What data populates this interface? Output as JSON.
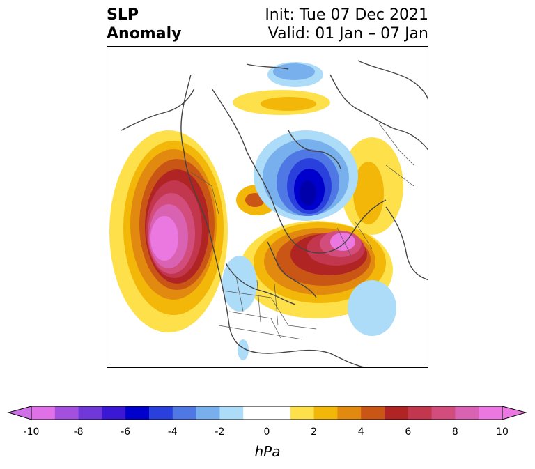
{
  "header": {
    "title_line1": "SLP",
    "title_line2": "Anomaly",
    "init_text": "Init: Tue 07 Dec 2021",
    "valid_text": "Valid: 01 Jan – 07 Jan"
  },
  "colorbar": {
    "unit_label": "hPa",
    "ticks": [
      "-10",
      "-8",
      "-6",
      "-4",
      "-2",
      "0",
      "2",
      "4",
      "6",
      "8",
      "10"
    ],
    "colors": [
      "#e070e8",
      "#a450de",
      "#7038d8",
      "#3a18d4",
      "#0000cc",
      "#2a40dc",
      "#5078e4",
      "#78b0ee",
      "#acdcf8",
      "#ffffff",
      "#ffffff",
      "#fde04a",
      "#f2b708",
      "#e28a10",
      "#ca5616",
      "#b02424",
      "#c2364e",
      "#d24c7c",
      "#da62b2",
      "#ea78e0"
    ]
  }
}
